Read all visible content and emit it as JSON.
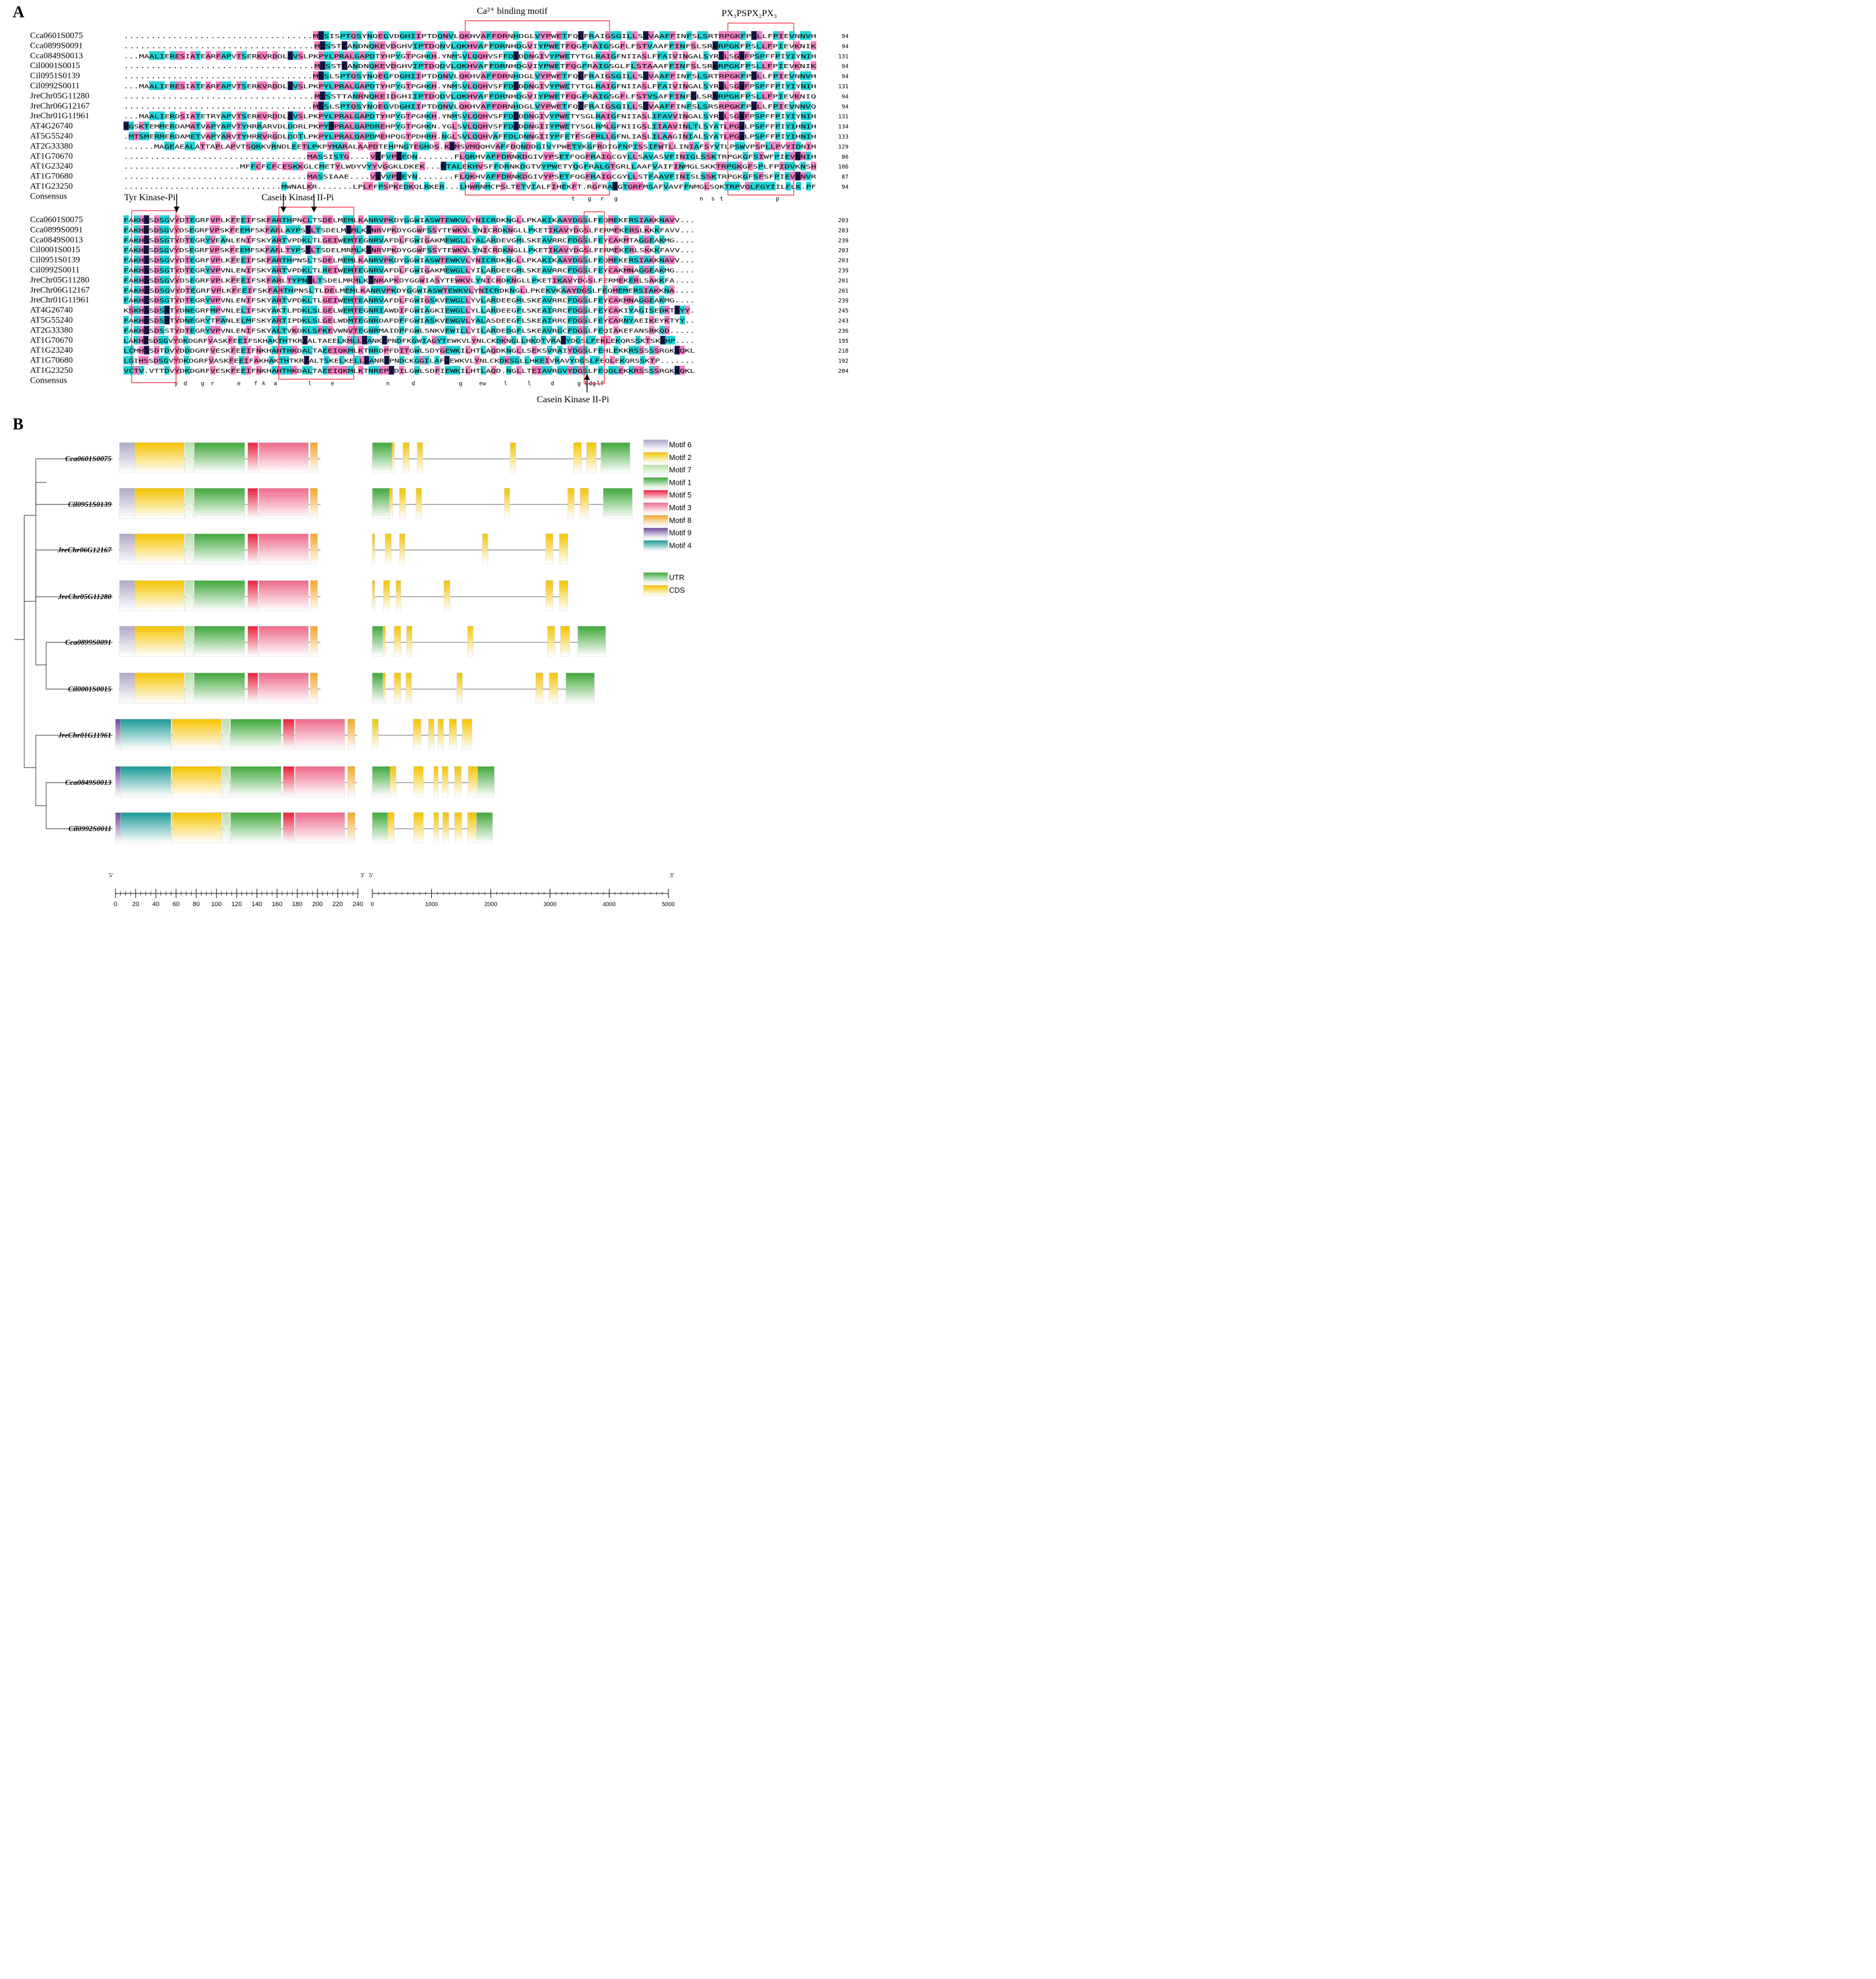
{
  "panel_a": {
    "letter": "A",
    "annotations": {
      "ca_motif": "Ca²⁺ binding motif",
      "px_motif": "PX₃PSPX₂PX₃",
      "tyr_kinase": "Tyr Kinase-Pi",
      "casein_top": "Casein Kinase II-Pi",
      "casein_bottom": "Casein Kinase II-Pi"
    },
    "block1": {
      "rows": [
        {
          "name": "Cca0601S0075",
          "seq": "...................................MSSISPTQSYNQEGVDGHIIPTDQNVLQKHVAFFDRNHDGLVYPWETFQGFRAIGSGILLSSVAAFFINFSLSRTRPGKFPSLLFPIEVNNVH",
          "end": "94"
        },
        {
          "name": "Cca0899S0091",
          "seq": "...................................MSSSTCANDNQKEVDGHVIPTDQNVLQKHVAFFDRNHDGVIYPWETFQGFRAIGSGFLFSTVAAFFINFSLSRKRPGKFPSLLFPIEVKNIK",
          "end": "94"
        },
        {
          "name": "Cca0849S0013",
          "seq": "...MAALIERESIATEARFAPVTSERKVRDDLEVSLPKPYLPRALGAPDTYHPYGTPGHKH.YNMSVLQQHVSFFDSDDNGIVYPWETYTGLRAIGFNIIASLFFAIVINGALSYRSLSGWFPSPFFPIYIYNIH",
          "end": "131"
        },
        {
          "name": "Cil0001S0015",
          "seq": "...................................MSSSTCANDNQKEVDGHVIPTDQDVLQKHVAFFDRNHDGVIYPWETFQGFRAIGSGLFLSTAAAFFINFSLSRKRPGKFPSLLFPIEVKNIK",
          "end": "94"
        },
        {
          "name": "Cil0951S0139",
          "seq": "...................................MSSLSPTQSYNQEGFDGHIIPTDQNVLQKHVAFFDRNHDGLVYPWETFQGFRAIGSGILLSSVAAFFINFSLSRTRPGKFPSLLFPIEVNNVH",
          "end": "94"
        },
        {
          "name": "Cil0992S0011",
          "seq": "...MAALIERESIATEARFAPVTSERKVRDDLEVSLPKPYLPRALGAPDTYHPYGTPGHKH.YNMSVLQQHVSFFDSDDNGIVYPWETYTGLRAIGFNIIASLFFAIVINGALSYRSLSGWFPSPFFPIYIYNIH",
          "end": "131"
        },
        {
          "name": "JreChr05G11280",
          "seq": "...................................MSSSTTANRNQKEIDGHIIPTDQDVLQKHVAFFDRNHDGVIYPWETFQGFRAIGSGFLFSTVSAFFINFGLSRKRPGKFPSLLFPIEVKNIQ",
          "end": "94"
        },
        {
          "name": "JreChr06G12167",
          "seq": "...................................MSSLSPTQSYNQEGVDGHIIPTDQNVLQKHVAFFDRNHDGLVYPWETFQGFRAIGSGILLSSVAAFFINFSLSRSRPGKFPSLLFPIEVNNVQ",
          "end": "94"
        },
        {
          "name": "JreChr01G11961",
          "seq": "...MAALIERDSIATETRYAPVTSERKVRDDLEVSLPKPYLPRALGAPDTYHPYGTPGHKH.YNMSVLQQHVSFFDSDDNGIVYPWETYSGLRAIGFNIIASLIFAVVINGALSYRSLSGWFPSPFFPIYIYNIH",
          "end": "131"
        },
        {
          "name": "AT4G26740",
          "seq": "MGSKTEMMERDAMATVAPYAPVTYHRRARVDLDDRLPKPYMPRALQAPDREHPYGTPGHKN.YGLSVLQQHVSFFDIDDNGIIYPWETYSGLRMLGFNIIGSLIIAAVINLTLSYATLPGWLPSPFFPIYIHNIH",
          "end": "134"
        },
        {
          "name": "AT5G55240",
          "seq": ".MTSMERMERDAMETVAPYARVTYHRRVRGDLDDTLPKPYLPRALQAPDMEHPQGTPDHRH.NGLSVLQQHVAFFDLDNNGIIYPFETFSGFRLLGFNLIASLILAAGINIALSYATLPGWLPSPFFPIYIHNIH",
          "end": "133"
        },
        {
          "name": "AT2G33380",
          "seq": "......MAGEAEALATTAPLAPVTSQRKVRNDLEETLPKPYMARALAAPDTEHPNGTEGHDS.KGMSVMQQHVAFFDQNDDGIVYPWETYKGFRDIGFNPISSIFWTLLINIAFSYVTLPSWVPSPLLPVYIDNIH",
          "end": "129"
        },
        {
          "name": "AT1G70670",
          "seq": "...................................MASSISTG....VKFVPEEDN.......FLQRHVAFFDRNKDGIVYPSETFQGFRAIGCGYLLSAVASVFINIGLSSKTRPGKGFSIWFPIEVKNIH",
          "end": "86"
        },
        {
          "name": "AT1G23240",
          "seq": "......................MFFCFCFCESKKGLCMETYLWDYVYYVGGKLDKEK...MTALEKHVSFFDRNKDGTVYPWETYQGFRALGTGRLLAAFVAIFINMGLSKKTRPGKGFSPLFPIDVKNSH",
          "end": "106"
        },
        {
          "name": "AT1G70680",
          "seq": "...................................MASSIAAE....VKVVPEEYN.......FLQKHVAFFDRNKDGIVYPSETFQGFRAIGCGYLLSTFAAVFINISLSSKTRPGKGFSFSFPIEVKNVR",
          "end": "87"
        },
        {
          "name": "AT1G23250",
          "seq": "...............................MWNALKR.......LPLFFPSPKEDKQLRKER...LHWRNMCPSLTETVIALFIHEKFT.RGFRAIGTGRFMSAFVAVFFNMGLSQKTRPVQLFGYIILFLK.PF",
          "end": "94"
        }
      ],
      "consensus_label": "Consensus",
      "consensus": [
        "t",
        "g",
        "r",
        "g",
        "n",
        "s",
        "t",
        "p"
      ]
    },
    "block2": {
      "rows": [
        {
          "name": "Cca0601S0075",
          "seq": "FAKHGSDSGVYDTEGRFVPLKFEEIFSKFARTHPNCLTSDELMEMLKANRVPKDYGGWIASWTEWKVLYNICRDKNGLLPKAKIKAAYDGSLFEQMEKERSIAKKNAVV...",
          "end": "203"
        },
        {
          "name": "Cca0899S0091",
          "seq": "FAKHGSDSGVYDSEGRFVPSKFEEMFSKFARLAYPSSLTSDELMQMLKANRVPKDYGGWFSSYTEWKVLYNICRDKNGLLPKETIKAVYDGSLFERMEKERSLKKKFAVV...",
          "end": "203"
        },
        {
          "name": "Cca0849S0013",
          "seq": "FAKHGSDSGTYDTEGRYVEANLENIFSKYARTVPDKLTLGEIWEMTEGNRVAFDLFGWIGAKMEWGLLYALARDEVGMLSKEAVRRCFDGSLFEYCAKMTAGGEAKMG....",
          "end": "239"
        },
        {
          "name": "Cil0001S0015",
          "seq": "FAKHGSDSGVYDSEGRFVPSKFEEMFSKFARLTYPSSLTSDELMRMLKANRVPKDYGGWFSSYTEWKVLYNICRDKNGLLPKETIKAVYDGSLFERMEKERLSKKKFAVV...",
          "end": "203"
        },
        {
          "name": "Cil0951S0139",
          "seq": "FAKHGSDSGVYDTEGRFVPLKFEEIFSKFARTHPNSLTSDELMEMLKANRVPKDYGGWIASWTEWKVLYNICRDKNGLLPKAKIKAAYDGSLFEQMEKERSIAKKNAVV...",
          "end": "203"
        },
        {
          "name": "Cil0992S0011",
          "seq": "FAKHGSDSGTYDTEGRYVPVNLENIFSKYARTVPDKLTLREIWEMTEGNRVAFDLFGWIGAKMEWGLLYILARDEEGMLSKEAVRRCFDGSLFEYCAKMNAGGEAKMG....",
          "end": "239"
        },
        {
          "name": "JreChr05G11280",
          "seq": "FAKHGSDSGVYDSEGRFVPLKFEEIFSKFARLTYPNSLTSDELMRMLKANRAPKDYGGWIASYTEWKVLYNICRDKNGLLPKETIKAVYDGSLFERMEKERLSAKKFA....",
          "end": "201"
        },
        {
          "name": "JreChr06G12167",
          "seq": "FAKHGSDSGVYDTEGRFVPLKFEEIFSKFARTHPNSLTLDELMEMLKANRVPKDYGGWIASWTEWKVLYNICRDKNGLLPKEKVKAAYDGSLFEQMEMERSIAKKNA....",
          "end": "201"
        },
        {
          "name": "JreChr01G11961",
          "seq": "FAKHGSDSGTYDTEGRYVPVNLENIFSKYARTVPDKLTLGEIWEMTEANRVAFDLFGWIGSKVEWGLLYVLARDEEGMLSKEAVRRCFDGSLFEYCAKMNAGGEAKMG....",
          "end": "239"
        },
        {
          "name": "AT4G26740",
          "seq": "KSKHGSDSKTYDNEGRFMPVNLELIFSKYAKTLPDKLSLGELWEMTEGNRIAWDIFGWIAGKIEWGLLYLLARDEEGFLSKEAIRRCFDGSLFEYCAKIYAGISEDKTAYY.",
          "end": "245"
        },
        {
          "name": "AT5G55240",
          "seq": "FAKHGSDSKTYDNEGRYTPANLELMFSKYARTIPDKLSLGELWDMTEGNRDAFDFFGWIASKVEWGVLYALASDEEGFLSKEAIRRCFDGSLFEYCARNYAEIKEYKTYY..",
          "end": "243"
        },
        {
          "name": "AT2G33380",
          "seq": "FAKHGSDSSTYDTEGRYVPVNLENIFSKYALTVKDKLSFKEVWNVTEGNRMAIDPFGWLSNKVEWILLYILARDEDGFLSKEAVRGCFDGSLFEQIAKEFANSRKQD.....",
          "end": "236"
        },
        {
          "name": "AT1G70670",
          "seq": "LAKHGSDSGVYDKDGRFVASKFEEIFSKHAKTHTKRIALTAEELKMLLKANKEPNDFKGWIAGYTEWKVLYNLCKDKNGLLHKDTVRAAYDGSLFEKLEKQRSSKTSKKHP....",
          "end": "195"
        },
        {
          "name": "AT1G23240",
          "seq": "LCMHGSDTDVYDDDGRFVESKFEEIFNKHAHTHKDALTAEEIQKMLKTNRDPFDITGWLSDYGEWKILHTLAQDKNGLLSEKSVRAIYDGSLFEHLEKKRSSSSSRGKKQKL",
          "end": "218"
        },
        {
          "name": "AT1G70680",
          "seq": "LGIHSSDSGVYDKDGRFVASKFEEIFAKHAKTHTKRIALTSKELKELLKANREPNDCKGGILAFGEWKVLYNLCKDKSGLLHKEIVRAVYDGSLFEQLEKQRSSKTP.......",
          "end": "192"
        },
        {
          "name": "AT1G23250",
          "seq": "VCTV.VTTDVYDKDGRFVESKFEEIFNKHAHTHKDALTAEEIQKMLKTNREPYDILGWLSDFIEWKILHTLAQD.NGLLTEIAVRGVYDGSLFEQQLEKKRSSSSRGKKQKL",
          "end": "204"
        }
      ],
      "consensus_label": "Consensus",
      "consensus": [
        "y",
        "d",
        "g",
        "r",
        "e",
        "f",
        "k",
        "a",
        "l",
        "e",
        "n",
        "d",
        "g",
        "ew",
        "l",
        "l",
        "d",
        "g",
        "l",
        "dg",
        "lf"
      ]
    }
  },
  "panel_b": {
    "letter": "B",
    "genes": [
      "Cca0601S0075",
      "Cil0951S0139",
      "JreChr06G12167",
      "JreChr05G11280",
      "Cca0899S0091",
      "Cil0001S0015",
      "JreChr01G11961",
      "Cca0849S0013",
      "Cil0992S0011"
    ],
    "motif_legend": [
      {
        "label": "Motif 6",
        "color": "#b0a8c8"
      },
      {
        "label": "Motif 2",
        "color": "#f5c400"
      },
      {
        "label": "Motif 7",
        "color": "#b8e0a8"
      },
      {
        "label": "Motif 1",
        "color": "#3fa83a"
      },
      {
        "label": "Motif 5",
        "color": "#e8203a"
      },
      {
        "label": "Motif 3",
        "color": "#ee6a8a"
      },
      {
        "label": "Motif 8",
        "color": "#f5a623"
      },
      {
        "label": "Motif 9",
        "color": "#6a4a9a"
      },
      {
        "label": "Motif 4",
        "color": "#1a9a96"
      }
    ],
    "structure_legend": [
      {
        "label": "UTR",
        "color": "#3fa83a"
      },
      {
        "label": "CDS",
        "color": "#f5c400"
      }
    ],
    "protein_axis": {
      "left": "5'",
      "right": "3'",
      "ticks": [
        "0",
        "20",
        "40",
        "60",
        "80",
        "100",
        "120",
        "140",
        "160",
        "180",
        "200",
        "220",
        "240"
      ]
    },
    "gene_axis": {
      "left": "5'",
      "right": "3'",
      "ticks": [
        "0",
        "1000",
        "2000",
        "3000",
        "4000",
        "5000"
      ]
    }
  }
}
